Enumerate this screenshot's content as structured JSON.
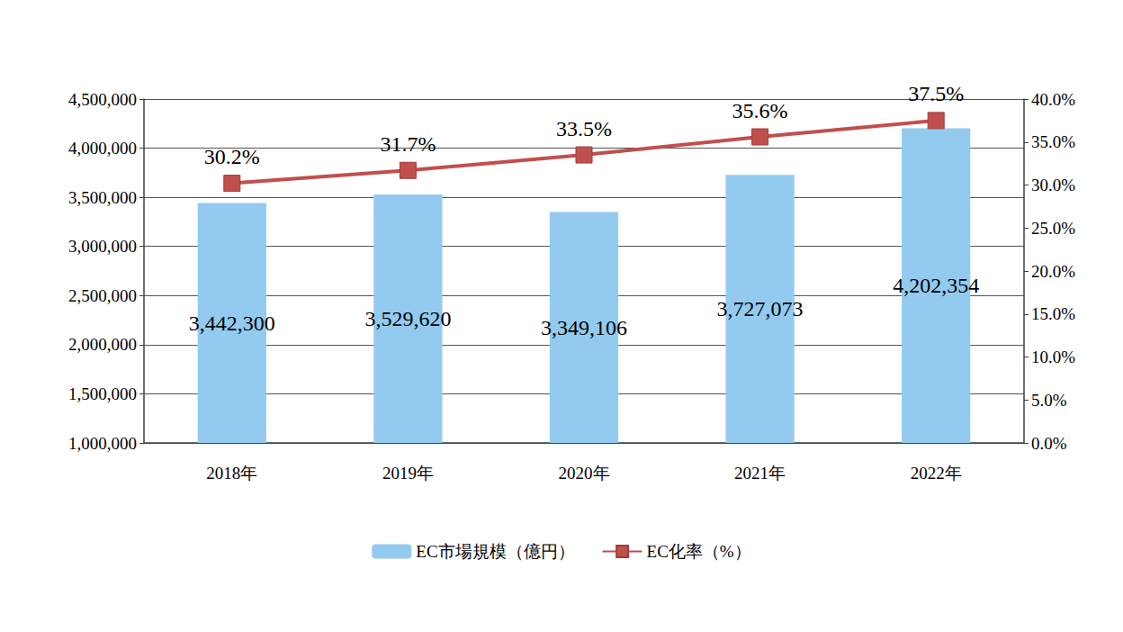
{
  "chart_data": {
    "type": "bar",
    "categories": [
      "2018年",
      "2019年",
      "2020年",
      "2021年",
      "2022年"
    ],
    "series": [
      {
        "name": "EC市場規模（億円）",
        "type": "bar",
        "color": "#92cbef",
        "values": [
          3442300,
          3529620,
          3349106,
          3727073,
          4202354
        ],
        "value_labels": [
          "3,442,300",
          "3,529,620",
          "3,349,106",
          "3,727,073",
          "4,202,354"
        ]
      },
      {
        "name": "EC化率（%）",
        "type": "line",
        "axis": "y2",
        "color": "#c0504d",
        "marker": "square",
        "values": [
          30.2,
          31.7,
          33.5,
          35.6,
          37.5
        ],
        "value_labels": [
          "30.2%",
          "31.7%",
          "33.5%",
          "35.6%",
          "37.5%"
        ]
      }
    ],
    "ylim": [
      1000000,
      4500000
    ],
    "yticks": [
      {
        "value": 1000000,
        "label": "1,000,000"
      },
      {
        "value": 1500000,
        "label": "1,500,000"
      },
      {
        "value": 2000000,
        "label": "2,000,000"
      },
      {
        "value": 2500000,
        "label": "2,500,000"
      },
      {
        "value": 3000000,
        "label": "3,000,000"
      },
      {
        "value": 3500000,
        "label": "3,500,000"
      },
      {
        "value": 4000000,
        "label": "4,000,000"
      },
      {
        "value": 4500000,
        "label": "4,500,000"
      }
    ],
    "y2lim": [
      0,
      40
    ],
    "y2ticks": [
      {
        "value": 0,
        "label": "0.0%"
      },
      {
        "value": 5,
        "label": "5.0%"
      },
      {
        "value": 10,
        "label": "10.0%"
      },
      {
        "value": 15,
        "label": "15.0%"
      },
      {
        "value": 20,
        "label": "20.0%"
      },
      {
        "value": 25,
        "label": "25.0%"
      },
      {
        "value": 30,
        "label": "30.0%"
      },
      {
        "value": 35,
        "label": "35.0%"
      },
      {
        "value": 40,
        "label": "40.0%"
      }
    ],
    "grid": true,
    "legend": "bottom",
    "data_labels": true
  }
}
